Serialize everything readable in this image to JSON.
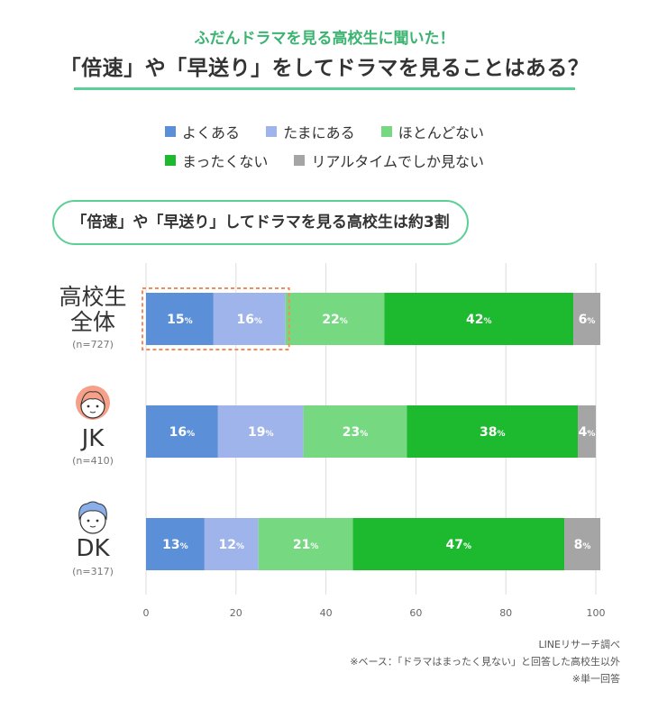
{
  "header": {
    "subtitle": "ふだんドラマを見る高校生に聞いた！",
    "title": "「倍速」や「早送り」をしてドラマを見ることはある？"
  },
  "callout": {
    "text": "「倍速」や「早送り」してドラマを見る高校生は約3割"
  },
  "footnotes": {
    "source": "LINEリサーチ調べ",
    "base": "※ベース：「ドラマはまったく見ない」と回答した高校生以外",
    "single": "※単一回答"
  },
  "rows": [
    {
      "label_lines": [
        "高校生",
        "全体"
      ],
      "n": "(n=727)",
      "icon": ""
    },
    {
      "label_lines": [
        "JK"
      ],
      "n": "(n=410)",
      "icon": "girl-face-icon"
    },
    {
      "label_lines": [
        "DK"
      ],
      "n": "(n=317)",
      "icon": "boy-face-icon"
    }
  ],
  "chart_data": {
    "type": "bar",
    "orientation": "horizontal",
    "stacked": true,
    "categories": [
      "高校生全体",
      "JK",
      "DK"
    ],
    "series": [
      {
        "name": "よくある",
        "color": "#5b8fd8",
        "values": [
          15,
          16,
          13
        ]
      },
      {
        "name": "たまにある",
        "color": "#9fb4ea",
        "values": [
          16,
          19,
          12
        ]
      },
      {
        "name": "ほとんどない",
        "color": "#77d882",
        "values": [
          22,
          23,
          21
        ]
      },
      {
        "name": "まったくない",
        "color": "#1db92e",
        "values": [
          42,
          38,
          47
        ]
      },
      {
        "name": "リアルタイムでしか見ない",
        "color": "#a5a5a5",
        "values": [
          6,
          4,
          8
        ]
      }
    ],
    "xlim": [
      0,
      100
    ],
    "xticks": [
      0,
      20,
      40,
      60,
      80,
      100
    ],
    "value_suffix": "%",
    "grid": true,
    "legend_position": "top"
  }
}
